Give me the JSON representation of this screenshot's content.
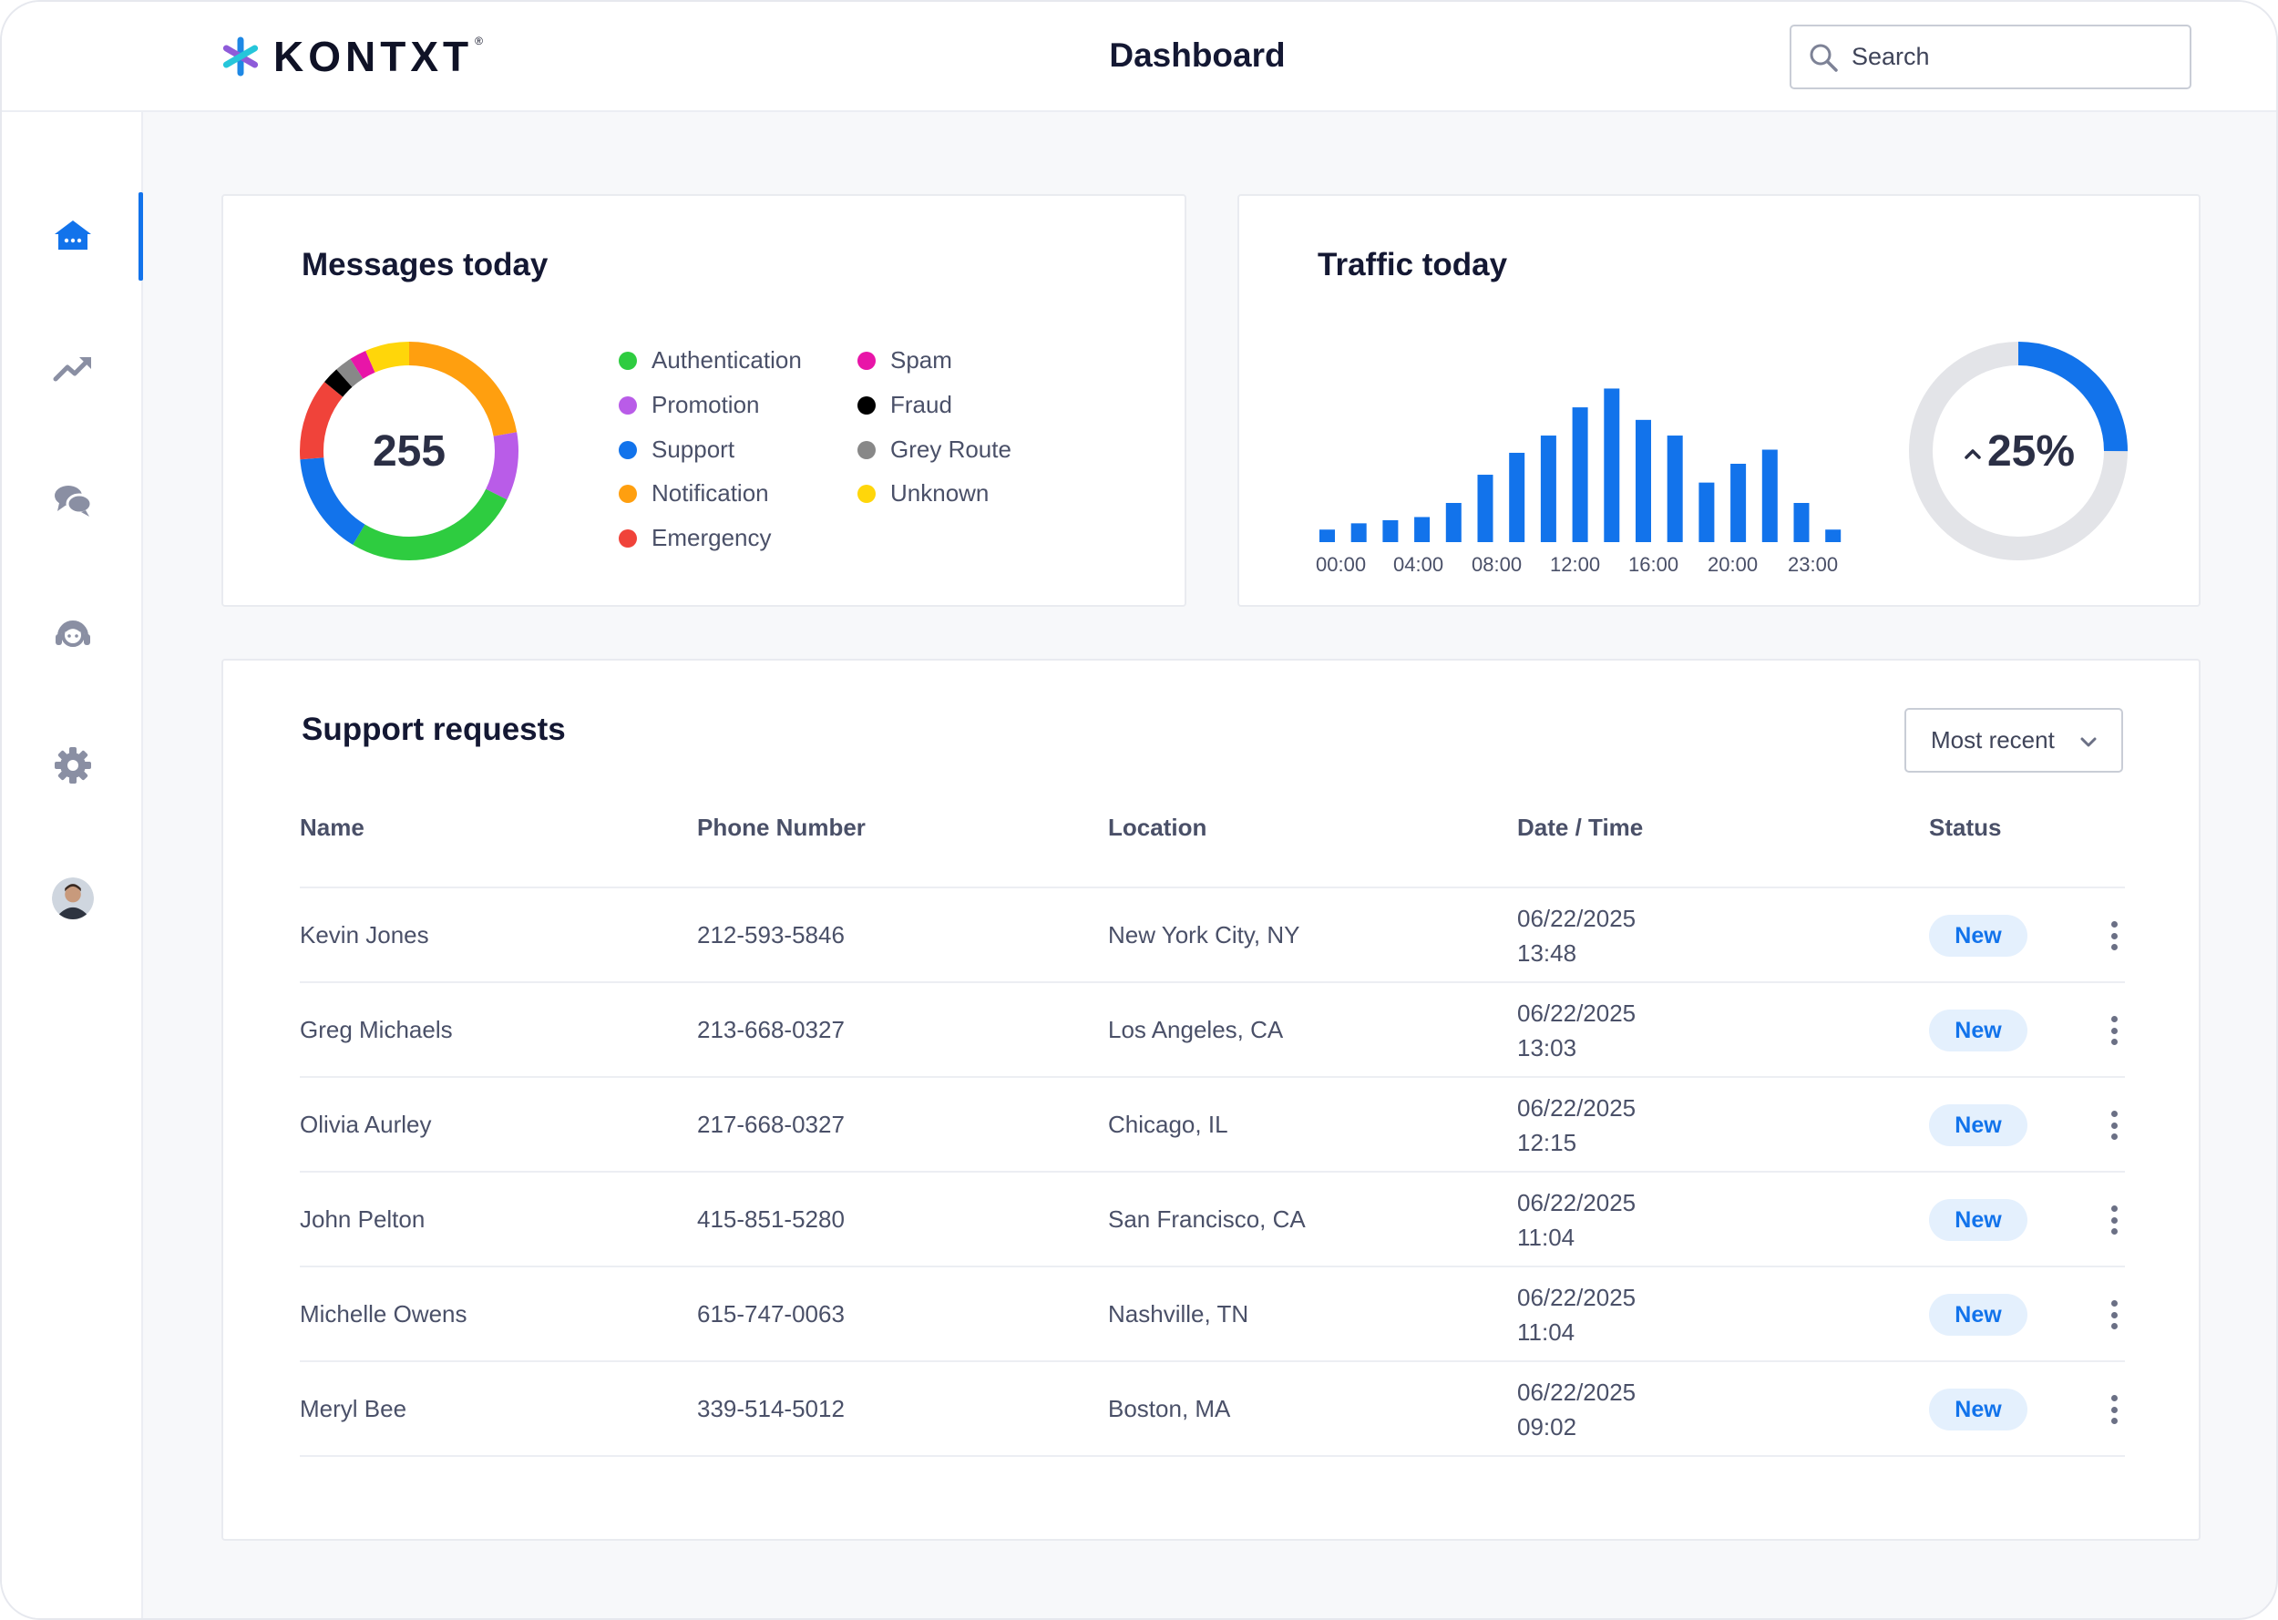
{
  "brand": {
    "name": "KONTXT",
    "registered": "®"
  },
  "header": {
    "title": "Dashboard",
    "search": {
      "placeholder": "Search",
      "value": ""
    }
  },
  "sidebar": {
    "items": [
      {
        "name": "home",
        "icon": "home-icon",
        "active": true
      },
      {
        "name": "trends",
        "icon": "trending-up-icon",
        "active": false
      },
      {
        "name": "messages",
        "icon": "chat-bubbles-icon",
        "active": false
      },
      {
        "name": "support",
        "icon": "headset-icon",
        "active": false
      },
      {
        "name": "settings",
        "icon": "gear-icon",
        "active": false
      },
      {
        "name": "profile",
        "icon": "avatar",
        "active": false
      }
    ]
  },
  "messages_card": {
    "title": "Messages today",
    "total": "255",
    "legend": [
      {
        "label": "Authentication",
        "color": "#2ecc40"
      },
      {
        "label": "Promotion",
        "color": "#b95ce8"
      },
      {
        "label": "Support",
        "color": "#1273eb"
      },
      {
        "label": "Notification",
        "color": "#ff9f0f"
      },
      {
        "label": "Emergency",
        "color": "#f0433a"
      },
      {
        "label": "Spam",
        "color": "#e815a8"
      },
      {
        "label": "Fraud",
        "color": "#000000"
      },
      {
        "label": "Grey Route",
        "color": "#888888"
      },
      {
        "label": "Unknown",
        "color": "#ffd60a"
      }
    ]
  },
  "traffic_card": {
    "title": "Traffic today",
    "change": "25%",
    "change_fraction": 0.25,
    "gauge_color": "#1273eb",
    "tick_labels": [
      "00:00",
      "04:00",
      "08:00",
      "12:00",
      "16:00",
      "20:00",
      "23:00"
    ]
  },
  "chart_data": [
    {
      "type": "pie",
      "title": "Messages today",
      "categories": [
        "Notification",
        "Promotion",
        "Authentication",
        "Support",
        "Emergency",
        "Fraud",
        "Grey Route",
        "Spam",
        "Unknown"
      ],
      "values": [
        0.22,
        0.1,
        0.26,
        0.15,
        0.12,
        0.025,
        0.025,
        0.025,
        0.065
      ],
      "colors": [
        "#ff9f0f",
        "#b95ce8",
        "#2ecc40",
        "#1273eb",
        "#f0433a",
        "#000000",
        "#888888",
        "#e815a8",
        "#ffd60a"
      ],
      "start_category": "Notification",
      "center_label": "255"
    },
    {
      "type": "bar",
      "title": "Traffic today",
      "categories": [
        "00:00",
        "01:00",
        "02:00",
        "03:00",
        "04:00",
        "05:00",
        "06:00",
        "07:00",
        "08:00",
        "09:00",
        "10:00",
        "11:00",
        "12:00",
        "13:00",
        "14:00",
        "15:00",
        "16:00",
        "17:00"
      ],
      "values": [
        8,
        12,
        14,
        16,
        25,
        43,
        57,
        68,
        86,
        98,
        78,
        68,
        38,
        50,
        59,
        25,
        8,
        0
      ],
      "ylim": [
        0,
        100
      ],
      "tick_labels": [
        "00:00",
        "04:00",
        "08:00",
        "12:00",
        "16:00",
        "20:00",
        "23:00"
      ],
      "color": "#1273eb"
    }
  ],
  "support_card": {
    "title": "Support requests",
    "sort": {
      "selected": "Most recent"
    },
    "columns": [
      "Name",
      "Phone Number",
      "Location",
      "Date / Time",
      "Status"
    ],
    "rows": [
      {
        "name": "Kevin Jones",
        "phone": "212-593-5846",
        "location": "New York City, NY",
        "date": "06/22/2025",
        "time": "13:48",
        "status": "New"
      },
      {
        "name": "Greg Michaels",
        "phone": "213-668-0327",
        "location": "Los Angeles, CA",
        "date": "06/22/2025",
        "time": "13:03",
        "status": "New"
      },
      {
        "name": "Olivia Aurley",
        "phone": "217-668-0327",
        "location": "Chicago, IL",
        "date": "06/22/2025",
        "time": "12:15",
        "status": "New"
      },
      {
        "name": "John Pelton",
        "phone": "415-851-5280",
        "location": "San Francisco, CA",
        "date": "06/22/2025",
        "time": "11:04",
        "status": "New"
      },
      {
        "name": "Michelle Owens",
        "phone": "615-747-0063",
        "location": "Nashville, TN",
        "date": "06/22/2025",
        "time": "11:04",
        "status": "New"
      },
      {
        "name": "Meryl Bee",
        "phone": "339-514-5012",
        "location": "Boston, MA",
        "date": "06/22/2025",
        "time": "09:02",
        "status": "New"
      }
    ]
  },
  "colors": {
    "accent": "#1273eb",
    "badge_bg": "#e4f0fd",
    "icon_muted": "#8a8fa3"
  }
}
